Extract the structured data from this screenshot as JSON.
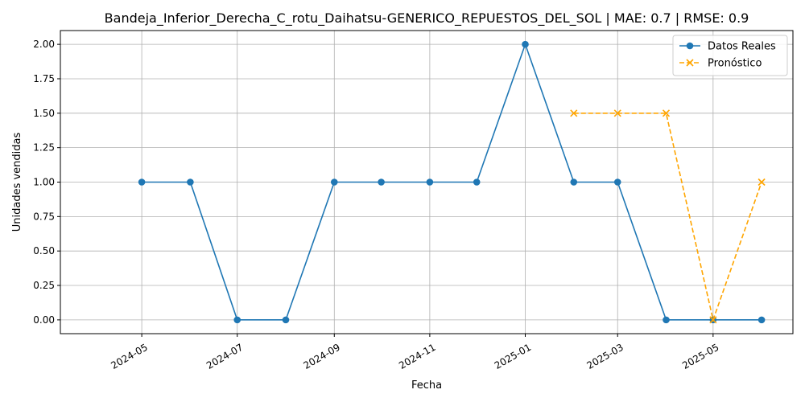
{
  "chart_data": {
    "type": "line",
    "title": "Bandeja_Inferior_Derecha_C_rotu_Daihatsu-GENERICO_REPUESTOS_DEL_SOL | MAE: 0.7 | RMSE: 0.9",
    "xlabel": "Fecha",
    "ylabel": "Unidades vendidas",
    "x_axis_type": "date",
    "xlim": [
      "2024-03-10",
      "2025-06-21"
    ],
    "ylim": [
      -0.1,
      2.1
    ],
    "x_ticks": [
      {
        "date": "2024-05-01",
        "label": "2024-05"
      },
      {
        "date": "2024-07-01",
        "label": "2024-07"
      },
      {
        "date": "2024-09-01",
        "label": "2024-09"
      },
      {
        "date": "2024-11-01",
        "label": "2024-11"
      },
      {
        "date": "2025-01-01",
        "label": "2025-01"
      },
      {
        "date": "2025-03-01",
        "label": "2025-03"
      },
      {
        "date": "2025-05-01",
        "label": "2025-05"
      }
    ],
    "y_ticks": [
      {
        "value": 0.0,
        "label": "0.00"
      },
      {
        "value": 0.25,
        "label": "0.25"
      },
      {
        "value": 0.5,
        "label": "0.50"
      },
      {
        "value": 0.75,
        "label": "0.75"
      },
      {
        "value": 1.0,
        "label": "1.00"
      },
      {
        "value": 1.25,
        "label": "1.25"
      },
      {
        "value": 1.5,
        "label": "1.50"
      },
      {
        "value": 1.75,
        "label": "1.75"
      },
      {
        "value": 2.0,
        "label": "2.00"
      }
    ],
    "grid": true,
    "legend_position": "top-right",
    "series": [
      {
        "name": "Datos Reales",
        "color": "#1f77b4",
        "line_style": "solid",
        "marker": "circle",
        "points": [
          {
            "x": "2024-05-01",
            "y": 1
          },
          {
            "x": "2024-06-01",
            "y": 1
          },
          {
            "x": "2024-07-01",
            "y": 0
          },
          {
            "x": "2024-08-01",
            "y": 0
          },
          {
            "x": "2024-09-01",
            "y": 1
          },
          {
            "x": "2024-10-01",
            "y": 1
          },
          {
            "x": "2024-11-01",
            "y": 1
          },
          {
            "x": "2024-12-01",
            "y": 1
          },
          {
            "x": "2025-01-01",
            "y": 2
          },
          {
            "x": "2025-02-01",
            "y": 1
          },
          {
            "x": "2025-03-01",
            "y": 1
          },
          {
            "x": "2025-04-01",
            "y": 0
          },
          {
            "x": "2025-05-01",
            "y": 0
          },
          {
            "x": "2025-06-01",
            "y": 0
          }
        ]
      },
      {
        "name": "Pronóstico",
        "color": "#ffa500",
        "line_style": "dashed",
        "marker": "x",
        "points": [
          {
            "x": "2025-02-01",
            "y": 1.5
          },
          {
            "x": "2025-03-01",
            "y": 1.5
          },
          {
            "x": "2025-04-01",
            "y": 1.5
          },
          {
            "x": "2025-05-01",
            "y": 0
          },
          {
            "x": "2025-06-01",
            "y": 1
          }
        ]
      }
    ]
  }
}
